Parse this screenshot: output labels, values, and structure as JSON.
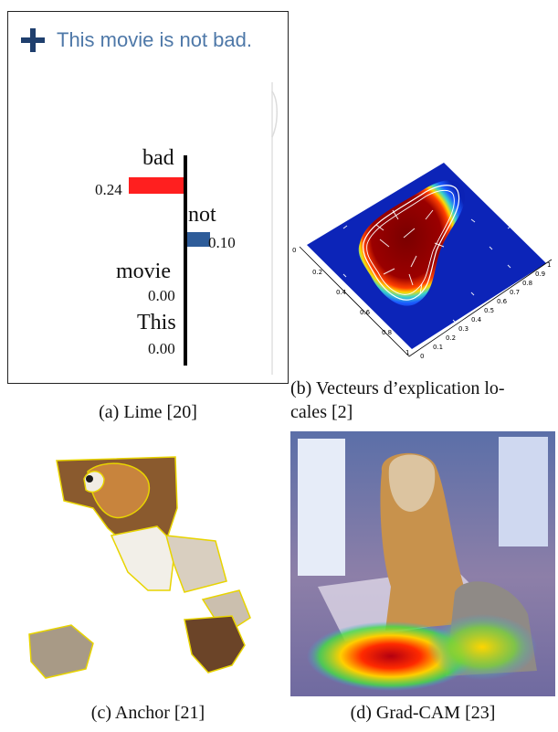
{
  "figure": {
    "lime": {
      "sentence": "This movie is not bad.",
      "chart_data": {
        "type": "bar",
        "categories": [
          "bad",
          "not",
          "movie",
          "This"
        ],
        "values": [
          0.24,
          0.1,
          0.0,
          0.0
        ],
        "value_labels": [
          "0.24",
          "0.10",
          "0.00",
          "0.00"
        ],
        "bar_colors": [
          "#ff1f1f",
          "#2e5c99",
          "#000000",
          "#000000"
        ]
      },
      "caption": "(a) Lime [20]"
    },
    "vectors": {
      "x_ticks": [
        "0",
        "0.2",
        "0.4",
        "0.6",
        "0.8",
        "1"
      ],
      "y_ticks": [
        "0",
        "0.1",
        "0.2",
        "0.3",
        "0.4",
        "0.5",
        "0.6",
        "0.7",
        "0.8",
        "0.9",
        "1"
      ],
      "caption_line1": "(b) Vecteurs d’explication lo-",
      "caption_line2": "cales [2]"
    },
    "anchor": {
      "caption": "(c) Anchor [21]"
    },
    "gradcam": {
      "caption": "(d) Grad-CAM [23]"
    }
  }
}
